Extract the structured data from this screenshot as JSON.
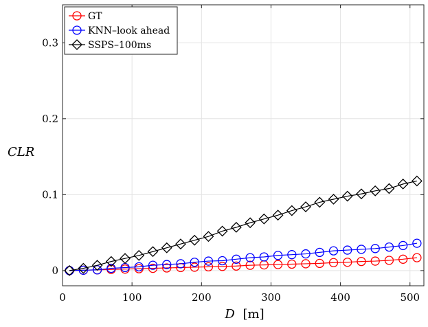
{
  "chart_data": {
    "type": "line",
    "title": "",
    "xlabel_var": "D",
    "xlabel_unit": "[m]",
    "ylabel": "CLR",
    "xlim": [
      0,
      520
    ],
    "ylim": [
      -0.02,
      0.35
    ],
    "xticks": [
      0,
      100,
      200,
      300,
      400,
      500
    ],
    "yticks": [
      0,
      0.1,
      0.2,
      0.3
    ],
    "xtick_labels": [
      "0",
      "100",
      "200",
      "300",
      "400",
      "500"
    ],
    "ytick_labels": [
      "0",
      "0.1",
      "0.2",
      "0.3"
    ],
    "grid": true,
    "legend_position": "top-left",
    "x": [
      10,
      30,
      50,
      70,
      90,
      110,
      130,
      150,
      170,
      190,
      210,
      230,
      250,
      270,
      290,
      310,
      330,
      350,
      370,
      390,
      410,
      430,
      450,
      470,
      490,
      510
    ],
    "series": [
      {
        "name": "GT",
        "color": "#ff0000",
        "marker": "circle",
        "values": [
          0.0,
          0.0005,
          0.001,
          0.0015,
          0.002,
          0.0025,
          0.003,
          0.0035,
          0.004,
          0.0045,
          0.005,
          0.0055,
          0.006,
          0.007,
          0.0075,
          0.008,
          0.0085,
          0.009,
          0.0095,
          0.0105,
          0.011,
          0.012,
          0.0125,
          0.0135,
          0.015,
          0.017
        ]
      },
      {
        "name": "KNN–look ahead",
        "color": "#0000ff",
        "marker": "circle",
        "values": [
          0.0,
          0.0005,
          0.001,
          0.003,
          0.004,
          0.005,
          0.007,
          0.008,
          0.009,
          0.011,
          0.0125,
          0.013,
          0.015,
          0.017,
          0.018,
          0.02,
          0.021,
          0.022,
          0.024,
          0.026,
          0.027,
          0.028,
          0.029,
          0.031,
          0.033,
          0.036
        ]
      },
      {
        "name": "SSPS–100ms",
        "color": "#000000",
        "marker": "diamond",
        "values": [
          0.0,
          0.003,
          0.007,
          0.012,
          0.016,
          0.02,
          0.025,
          0.03,
          0.035,
          0.04,
          0.045,
          0.052,
          0.057,
          0.063,
          0.068,
          0.073,
          0.079,
          0.084,
          0.09,
          0.094,
          0.098,
          0.101,
          0.105,
          0.108,
          0.114,
          0.118
        ]
      }
    ]
  }
}
